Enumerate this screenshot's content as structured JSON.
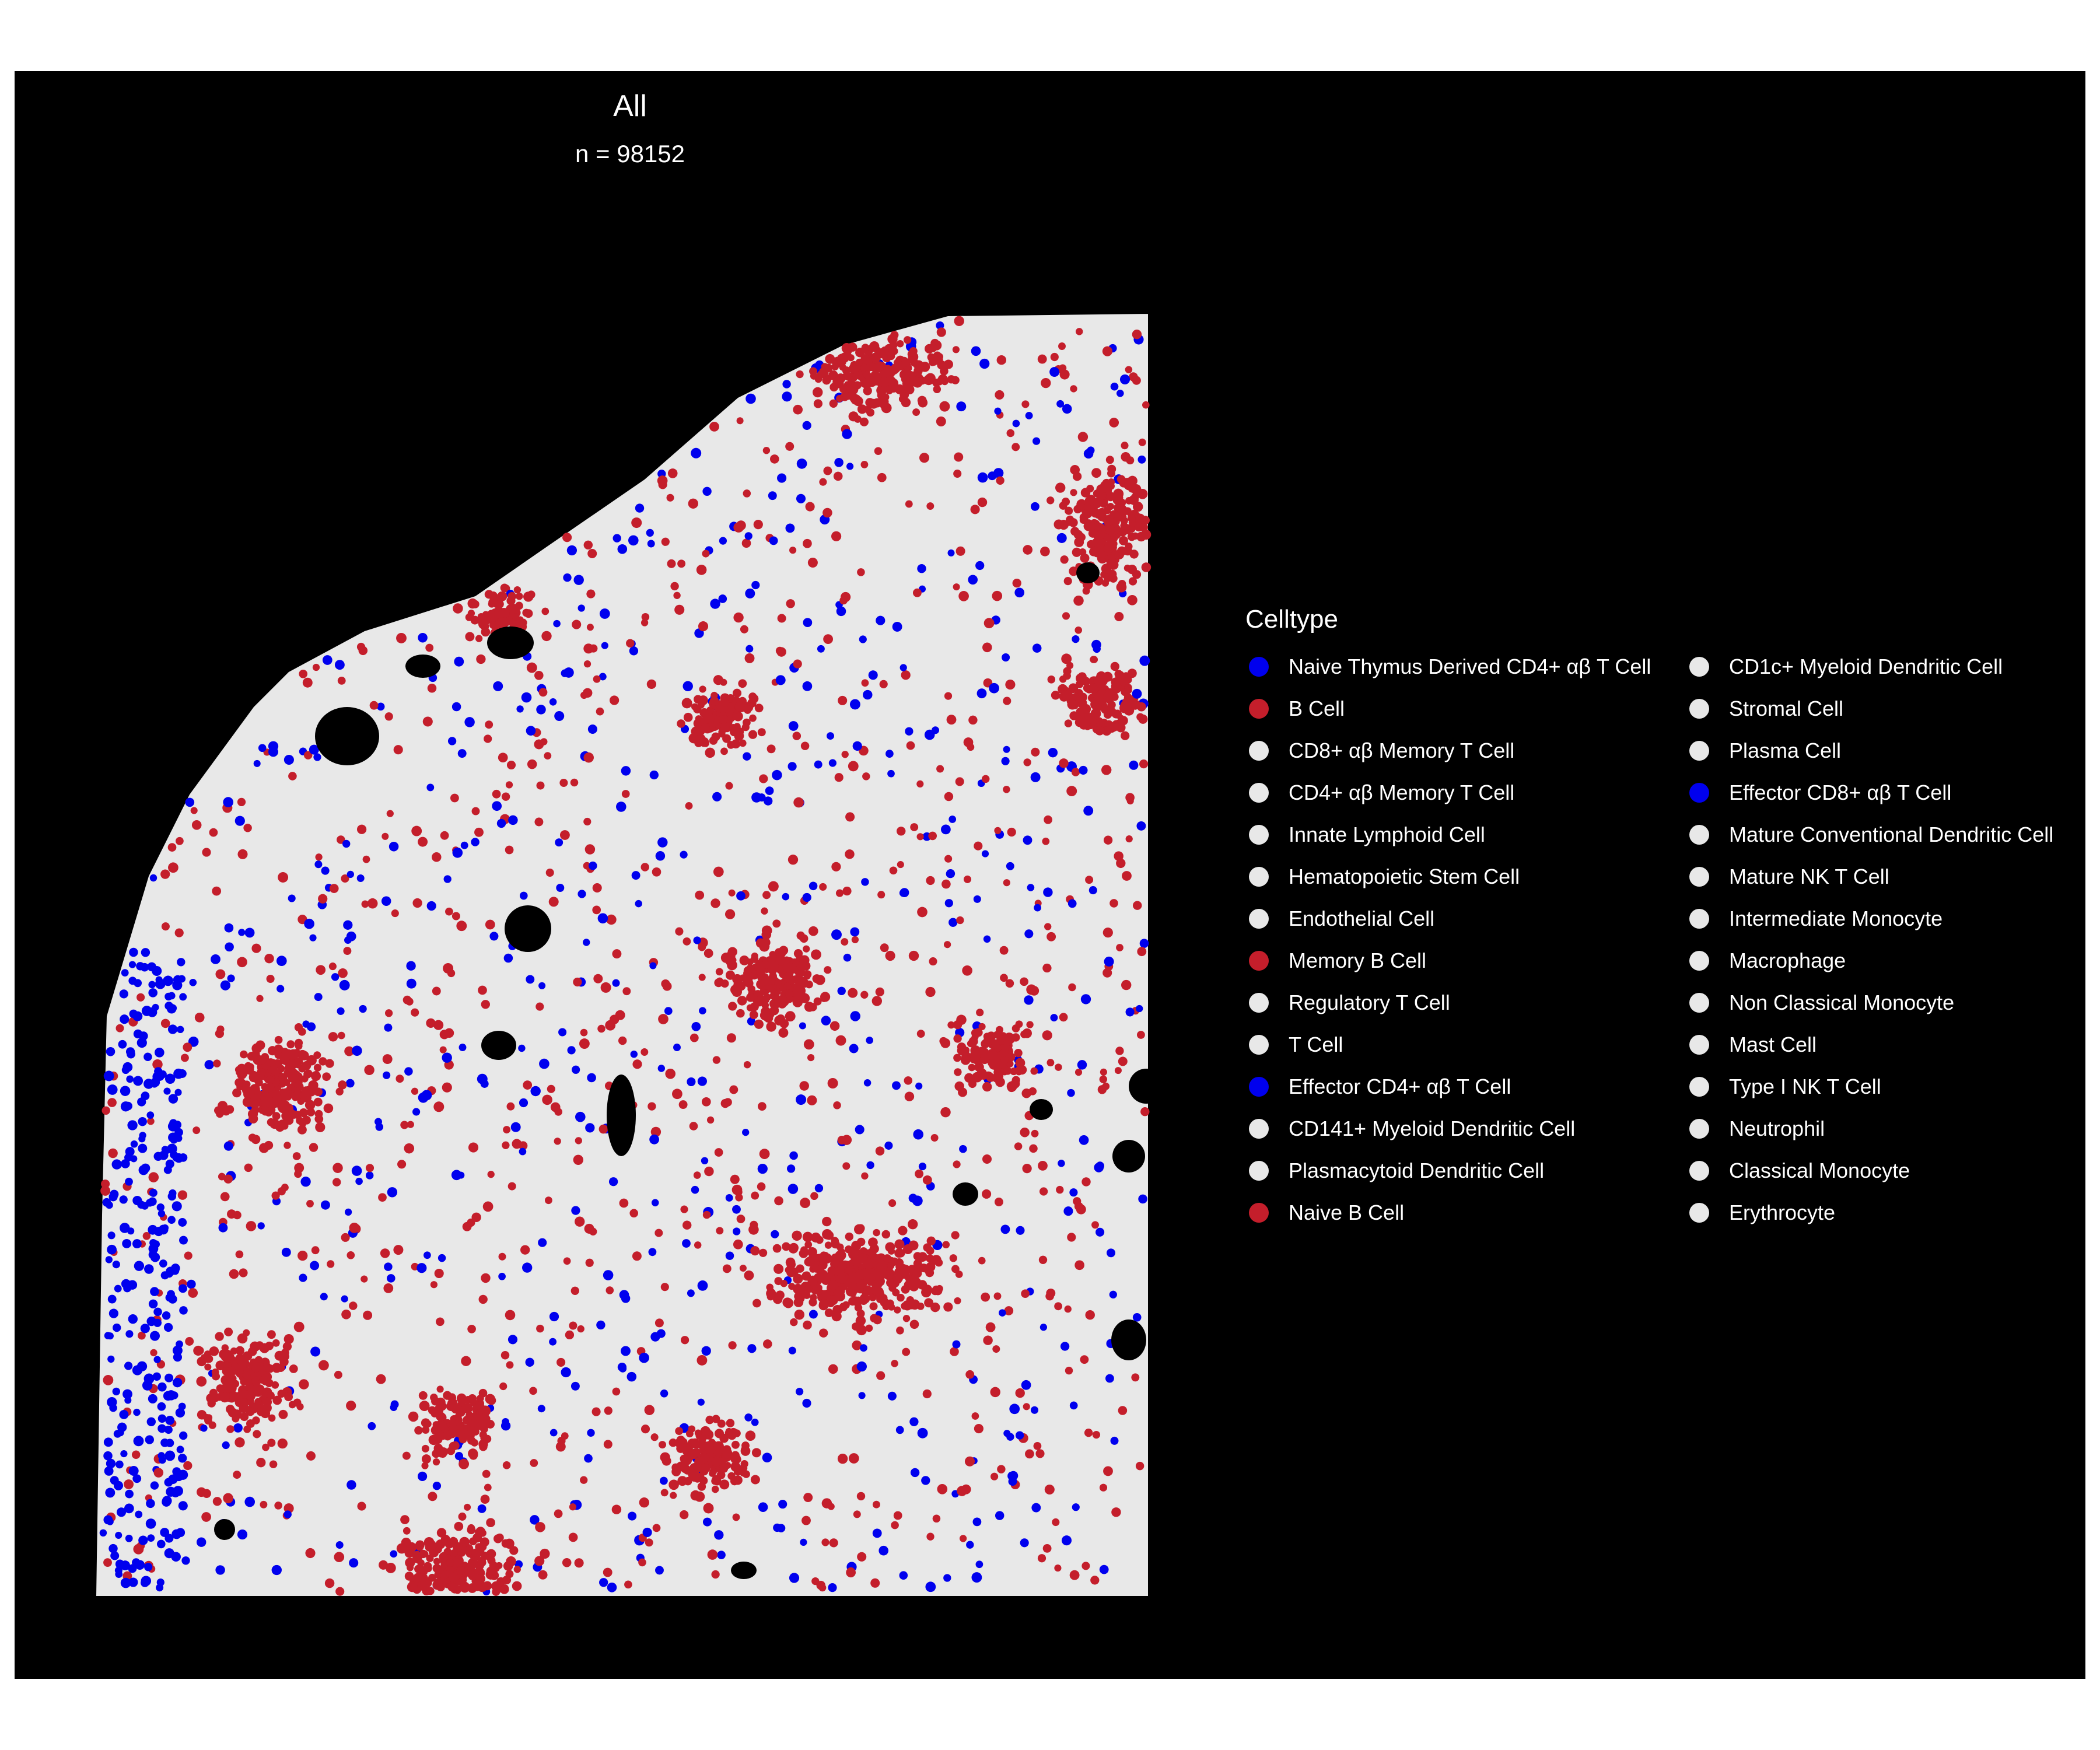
{
  "chart_data": {
    "type": "scatter",
    "title": "All",
    "subtitle": "n = 98152",
    "legend_title": "Celltype",
    "legend_position": "right",
    "background": "#000000",
    "colors": {
      "red": "#C41E2B",
      "blue": "#0000EE",
      "white": "#E8E8E8"
    },
    "legend": [
      {
        "label": "Naive Thymus Derived CD4+ αβ T Cell",
        "color": "#0000EE"
      },
      {
        "label": "B Cell",
        "color": "#C41E2B"
      },
      {
        "label": "CD8+ αβ Memory T Cell",
        "color": "#E8E8E8"
      },
      {
        "label": "CD4+ αβ Memory T Cell",
        "color": "#E8E8E8"
      },
      {
        "label": "Innate Lymphoid Cell",
        "color": "#E8E8E8"
      },
      {
        "label": "Hematopoietic Stem Cell",
        "color": "#E8E8E8"
      },
      {
        "label": "Endothelial Cell",
        "color": "#E8E8E8"
      },
      {
        "label": "Memory B Cell",
        "color": "#C41E2B"
      },
      {
        "label": "Regulatory T Cell",
        "color": "#E8E8E8"
      },
      {
        "label": "T Cell",
        "color": "#E8E8E8"
      },
      {
        "label": "Effector CD4+ αβ T Cell",
        "color": "#0000EE"
      },
      {
        "label": "CD141+ Myeloid Dendritic Cell",
        "color": "#E8E8E8"
      },
      {
        "label": "Plasmacytoid Dendritic Cell",
        "color": "#E8E8E8"
      },
      {
        "label": "Naive B Cell",
        "color": "#C41E2B"
      },
      {
        "label": "CD1c+ Myeloid Dendritic Cell",
        "color": "#E8E8E8"
      },
      {
        "label": "Stromal Cell",
        "color": "#E8E8E8"
      },
      {
        "label": "Plasma Cell",
        "color": "#E8E8E8"
      },
      {
        "label": "Effector CD8+ αβ T Cell",
        "color": "#0000EE"
      },
      {
        "label": "Mature Conventional Dendritic Cell",
        "color": "#E8E8E8"
      },
      {
        "label": "Mature NK T Cell",
        "color": "#E8E8E8"
      },
      {
        "label": "Intermediate Monocyte",
        "color": "#E8E8E8"
      },
      {
        "label": "Macrophage",
        "color": "#E8E8E8"
      },
      {
        "label": "Non Classical Monocyte",
        "color": "#E8E8E8"
      },
      {
        "label": "Mast Cell",
        "color": "#E8E8E8"
      },
      {
        "label": "Type I NK T Cell",
        "color": "#E8E8E8"
      },
      {
        "label": "Neutrophil",
        "color": "#E8E8E8"
      },
      {
        "label": "Classical Monocyte",
        "color": "#E8E8E8"
      },
      {
        "label": "Erythrocyte",
        "color": "#E8E8E8"
      }
    ]
  }
}
